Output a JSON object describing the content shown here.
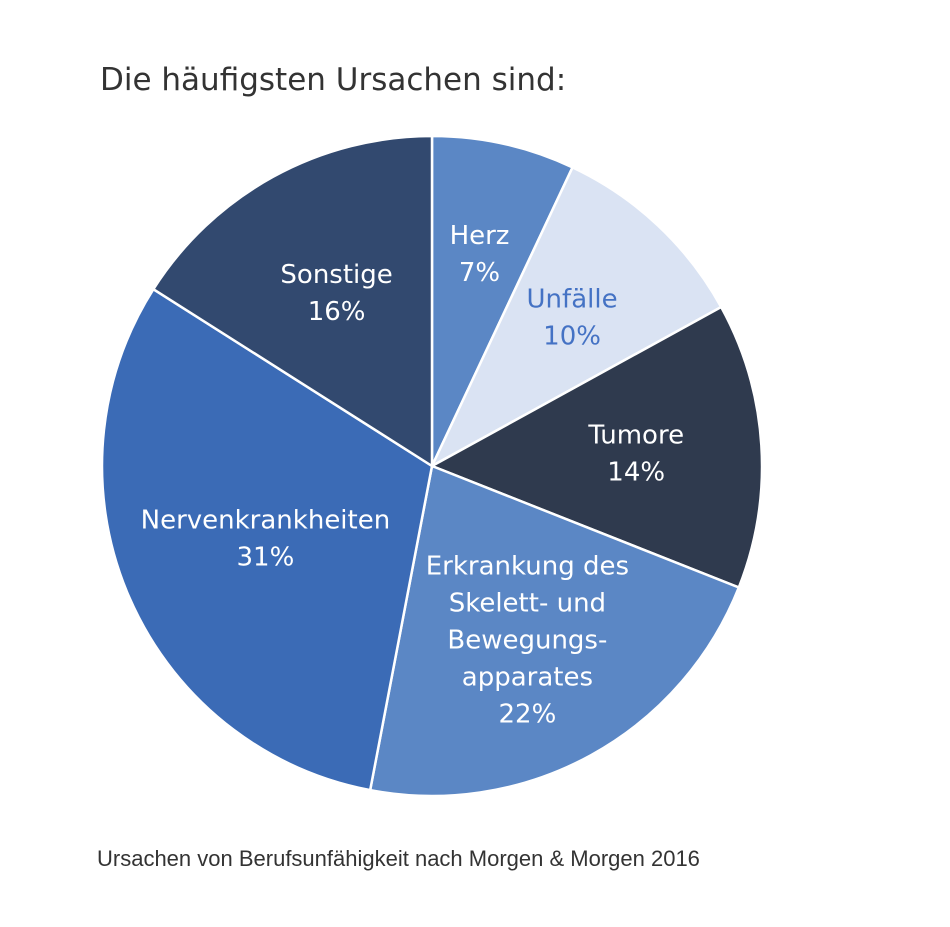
{
  "title": "Die häufigsten Ursachen sind:",
  "caption": "Ursachen von Berufsunfähigkeit nach Morgen & Morgen 2016",
  "chart_data": {
    "type": "pie",
    "start_angle_deg": 0,
    "direction": "clockwise",
    "slices": [
      {
        "label": [
          "Herz"
        ],
        "value": 7,
        "value_label": "7%",
        "color": "#5b87c5",
        "text_color": "#ffffff"
      },
      {
        "label": [
          "Unfälle"
        ],
        "value": 10,
        "value_label": "10%",
        "color": "#dae3f3",
        "text_color": "#4472c4"
      },
      {
        "label": [
          "Tumore"
        ],
        "value": 14,
        "value_label": "14%",
        "color": "#2f3a4e",
        "text_color": "#ffffff"
      },
      {
        "label": [
          "Erkrankung des",
          "Skelett- und",
          "Bewegungs-",
          "apparates"
        ],
        "value": 22,
        "value_label": "22%",
        "color": "#5b87c5",
        "text_color": "#ffffff"
      },
      {
        "label": [
          "Nervenkrankheiten"
        ],
        "value": 31,
        "value_label": "31%",
        "color": "#3b6bb6",
        "text_color": "#ffffff"
      },
      {
        "label": [
          "Sonstige"
        ],
        "value": 16,
        "value_label": "16%",
        "color": "#32496f",
        "text_color": "#ffffff"
      }
    ]
  }
}
